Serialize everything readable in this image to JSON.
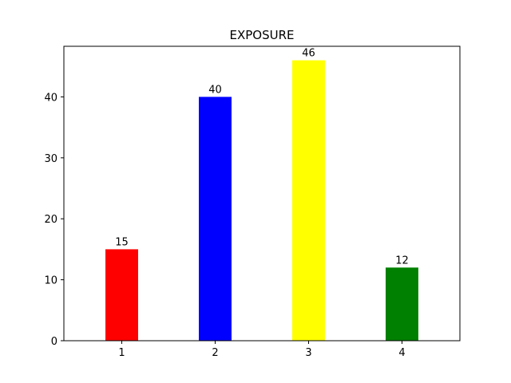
{
  "chart_data": {
    "type": "bar",
    "title": "EXPOSURE",
    "xlabel": "",
    "ylabel": "",
    "categories": [
      "1",
      "2",
      "3",
      "4"
    ],
    "values": [
      15,
      40,
      46,
      12
    ],
    "value_labels": [
      "15",
      "40",
      "46",
      "12"
    ],
    "colors": [
      "#ff0000",
      "#0000ff",
      "#ffff00",
      "#008000"
    ],
    "ylim": [
      0,
      48.3
    ],
    "yticks": [
      0,
      10,
      20,
      30,
      40
    ],
    "ytick_labels": [
      "0",
      "10",
      "20",
      "30",
      "40"
    ],
    "grid": false,
    "legend": "none"
  }
}
